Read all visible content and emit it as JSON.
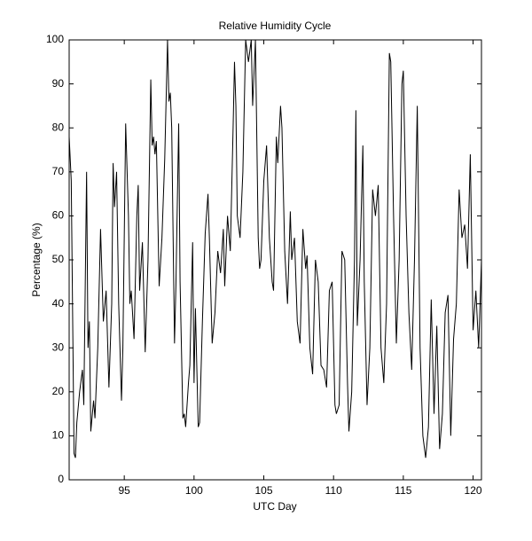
{
  "chart_data": {
    "type": "line",
    "title": "Relative Humidity Cycle",
    "x_label": "UTC Day",
    "y_label": "Percentage (%)",
    "color": "#000000",
    "x": [
      91.05,
      91.2,
      91.4,
      91.5,
      91.6,
      91.8,
      92.0,
      92.1,
      92.3,
      92.4,
      92.5,
      92.6,
      92.8,
      92.9,
      93.1,
      93.3,
      93.5,
      93.7,
      93.9,
      94.1,
      94.2,
      94.3,
      94.45,
      94.6,
      94.8,
      94.9,
      95.1,
      95.3,
      95.4,
      95.5,
      95.7,
      95.9,
      96.0,
      96.1,
      96.3,
      96.5,
      96.7,
      96.9,
      97.0,
      97.1,
      97.2,
      97.3,
      97.5,
      97.7,
      97.9,
      98.1,
      98.2,
      98.3,
      98.4,
      98.6,
      98.7,
      98.9,
      99.0,
      99.2,
      99.3,
      99.4,
      99.6,
      99.7,
      99.9,
      100.0,
      100.1,
      100.3,
      100.4,
      100.6,
      100.8,
      101.0,
      101.1,
      101.3,
      101.5,
      101.7,
      101.9,
      102.1,
      102.2,
      102.4,
      102.6,
      102.8,
      102.9,
      103.0,
      103.1,
      103.3,
      103.5,
      103.7,
      103.9,
      104.1,
      104.2,
      104.4,
      104.6,
      104.7,
      104.8,
      105.0,
      105.2,
      105.4,
      105.6,
      105.7,
      105.9,
      106.0,
      106.2,
      106.3,
      106.5,
      106.7,
      106.9,
      107.0,
      107.2,
      107.4,
      107.6,
      107.8,
      108.0,
      108.1,
      108.3,
      108.5,
      108.7,
      108.9,
      109.1,
      109.3,
      109.5,
      109.7,
      109.9,
      110.1,
      110.2,
      110.4,
      110.6,
      110.8,
      111.0,
      111.1,
      111.3,
      111.5,
      111.6,
      111.7,
      111.9,
      112.1,
      112.2,
      112.4,
      112.6,
      112.8,
      113.0,
      113.2,
      113.4,
      113.6,
      113.8,
      114.0,
      114.1,
      114.3,
      114.5,
      114.7,
      114.9,
      115.0,
      115.2,
      115.4,
      115.6,
      115.8,
      116.0,
      116.2,
      116.4,
      116.6,
      116.8,
      117.0,
      117.2,
      117.4,
      117.6,
      117.8,
      118.0,
      118.2,
      118.4,
      118.6,
      118.8,
      119.0,
      119.2,
      119.4,
      119.6,
      119.8,
      120.0,
      120.2,
      120.4,
      120.6
    ],
    "values": [
      78,
      68,
      6,
      5,
      13,
      20,
      25,
      17,
      70,
      30,
      36,
      11,
      18,
      14,
      30,
      57,
      36,
      43,
      21,
      40,
      72,
      62,
      70,
      40,
      18,
      30,
      81,
      60,
      40,
      43,
      32,
      60,
      67,
      43,
      54,
      29,
      50,
      91,
      76,
      78,
      74,
      77,
      44,
      55,
      73,
      100,
      86,
      88,
      80,
      31,
      44,
      81,
      45,
      14,
      15,
      12,
      22,
      26,
      54,
      22,
      39,
      12,
      13,
      36,
      56,
      65,
      55,
      31,
      38,
      52,
      47,
      57,
      44,
      60,
      52,
      80,
      95,
      85,
      60,
      55,
      70,
      100,
      95,
      100,
      85,
      100,
      55,
      48,
      50,
      68,
      76,
      55,
      45,
      43,
      78,
      72,
      85,
      80,
      52,
      40,
      61,
      50,
      55,
      36,
      31,
      57,
      48,
      51,
      30,
      24,
      50,
      45,
      26,
      25,
      21,
      43,
      45,
      17,
      15,
      17,
      52,
      50,
      22,
      11,
      20,
      50,
      84,
      35,
      50,
      76,
      45,
      17,
      30,
      66,
      60,
      67,
      30,
      22,
      40,
      97,
      95,
      60,
      31,
      50,
      90,
      93,
      60,
      38,
      25,
      50,
      85,
      30,
      10,
      5,
      12,
      41,
      15,
      35,
      7,
      15,
      38,
      42,
      10,
      32,
      40,
      66,
      55,
      58,
      48,
      74,
      34,
      43,
      30,
      50
    ],
    "xlim": [
      91.05,
      120.6
    ],
    "ylim": [
      0,
      100
    ],
    "xticks": [
      95,
      100,
      105,
      110,
      115,
      120
    ],
    "yticks": [
      0,
      10,
      20,
      30,
      40,
      50,
      60,
      70,
      80,
      90,
      100
    ]
  }
}
